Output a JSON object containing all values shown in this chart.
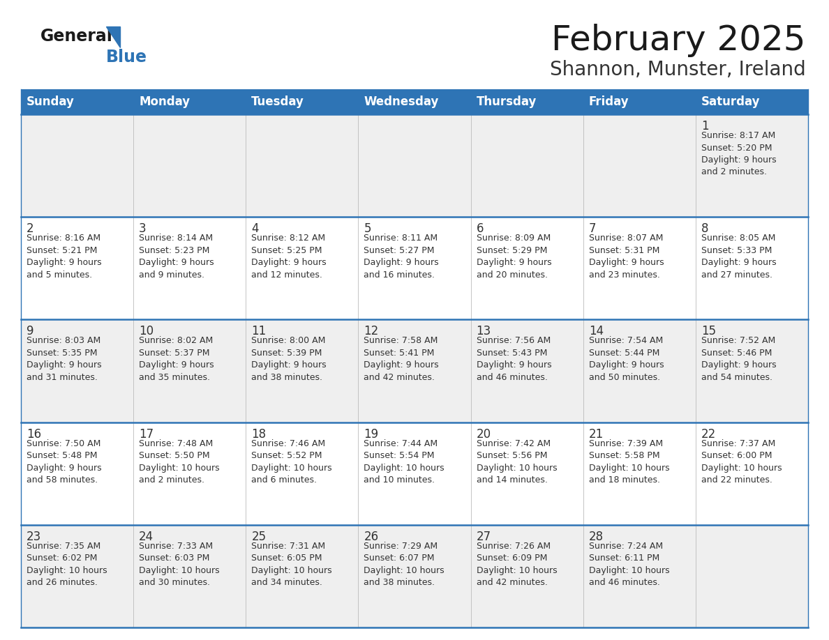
{
  "title": "February 2025",
  "subtitle": "Shannon, Munster, Ireland",
  "days_of_week": [
    "Sunday",
    "Monday",
    "Tuesday",
    "Wednesday",
    "Thursday",
    "Friday",
    "Saturday"
  ],
  "header_bg": "#2E74B5",
  "header_text_color": "#FFFFFF",
  "cell_bg_light": "#EFEFEF",
  "cell_bg_white": "#FFFFFF",
  "cell_text_color": "#333333",
  "day_num_color": "#333333",
  "border_color": "#2E74B5",
  "grid_color": "#BBBBBB",
  "title_color": "#1a1a1a",
  "subtitle_color": "#333333",
  "logo_color": "#2E74B5",
  "figsize": [
    11.88,
    9.18
  ],
  "dpi": 100,
  "calendar": [
    [
      null,
      null,
      null,
      null,
      null,
      null,
      {
        "day": 1,
        "sunrise": "8:17 AM",
        "sunset": "5:20 PM",
        "daylight": "9 hours and 2 minutes."
      }
    ],
    [
      {
        "day": 2,
        "sunrise": "8:16 AM",
        "sunset": "5:21 PM",
        "daylight": "9 hours and 5 minutes."
      },
      {
        "day": 3,
        "sunrise": "8:14 AM",
        "sunset": "5:23 PM",
        "daylight": "9 hours and 9 minutes."
      },
      {
        "day": 4,
        "sunrise": "8:12 AM",
        "sunset": "5:25 PM",
        "daylight": "9 hours and 12 minutes."
      },
      {
        "day": 5,
        "sunrise": "8:11 AM",
        "sunset": "5:27 PM",
        "daylight": "9 hours and 16 minutes."
      },
      {
        "day": 6,
        "sunrise": "8:09 AM",
        "sunset": "5:29 PM",
        "daylight": "9 hours and 20 minutes."
      },
      {
        "day": 7,
        "sunrise": "8:07 AM",
        "sunset": "5:31 PM",
        "daylight": "9 hours and 23 minutes."
      },
      {
        "day": 8,
        "sunrise": "8:05 AM",
        "sunset": "5:33 PM",
        "daylight": "9 hours and 27 minutes."
      }
    ],
    [
      {
        "day": 9,
        "sunrise": "8:03 AM",
        "sunset": "5:35 PM",
        "daylight": "9 hours and 31 minutes."
      },
      {
        "day": 10,
        "sunrise": "8:02 AM",
        "sunset": "5:37 PM",
        "daylight": "9 hours and 35 minutes."
      },
      {
        "day": 11,
        "sunrise": "8:00 AM",
        "sunset": "5:39 PM",
        "daylight": "9 hours and 38 minutes."
      },
      {
        "day": 12,
        "sunrise": "7:58 AM",
        "sunset": "5:41 PM",
        "daylight": "9 hours and 42 minutes."
      },
      {
        "day": 13,
        "sunrise": "7:56 AM",
        "sunset": "5:43 PM",
        "daylight": "9 hours and 46 minutes."
      },
      {
        "day": 14,
        "sunrise": "7:54 AM",
        "sunset": "5:44 PM",
        "daylight": "9 hours and 50 minutes."
      },
      {
        "day": 15,
        "sunrise": "7:52 AM",
        "sunset": "5:46 PM",
        "daylight": "9 hours and 54 minutes."
      }
    ],
    [
      {
        "day": 16,
        "sunrise": "7:50 AM",
        "sunset": "5:48 PM",
        "daylight": "9 hours and 58 minutes."
      },
      {
        "day": 17,
        "sunrise": "7:48 AM",
        "sunset": "5:50 PM",
        "daylight": "10 hours and 2 minutes."
      },
      {
        "day": 18,
        "sunrise": "7:46 AM",
        "sunset": "5:52 PM",
        "daylight": "10 hours and 6 minutes."
      },
      {
        "day": 19,
        "sunrise": "7:44 AM",
        "sunset": "5:54 PM",
        "daylight": "10 hours and 10 minutes."
      },
      {
        "day": 20,
        "sunrise": "7:42 AM",
        "sunset": "5:56 PM",
        "daylight": "10 hours and 14 minutes."
      },
      {
        "day": 21,
        "sunrise": "7:39 AM",
        "sunset": "5:58 PM",
        "daylight": "10 hours and 18 minutes."
      },
      {
        "day": 22,
        "sunrise": "7:37 AM",
        "sunset": "6:00 PM",
        "daylight": "10 hours and 22 minutes."
      }
    ],
    [
      {
        "day": 23,
        "sunrise": "7:35 AM",
        "sunset": "6:02 PM",
        "daylight": "10 hours and 26 minutes."
      },
      {
        "day": 24,
        "sunrise": "7:33 AM",
        "sunset": "6:03 PM",
        "daylight": "10 hours and 30 minutes."
      },
      {
        "day": 25,
        "sunrise": "7:31 AM",
        "sunset": "6:05 PM",
        "daylight": "10 hours and 34 minutes."
      },
      {
        "day": 26,
        "sunrise": "7:29 AM",
        "sunset": "6:07 PM",
        "daylight": "10 hours and 38 minutes."
      },
      {
        "day": 27,
        "sunrise": "7:26 AM",
        "sunset": "6:09 PM",
        "daylight": "10 hours and 42 minutes."
      },
      {
        "day": 28,
        "sunrise": "7:24 AM",
        "sunset": "6:11 PM",
        "daylight": "10 hours and 46 minutes."
      },
      null
    ]
  ]
}
